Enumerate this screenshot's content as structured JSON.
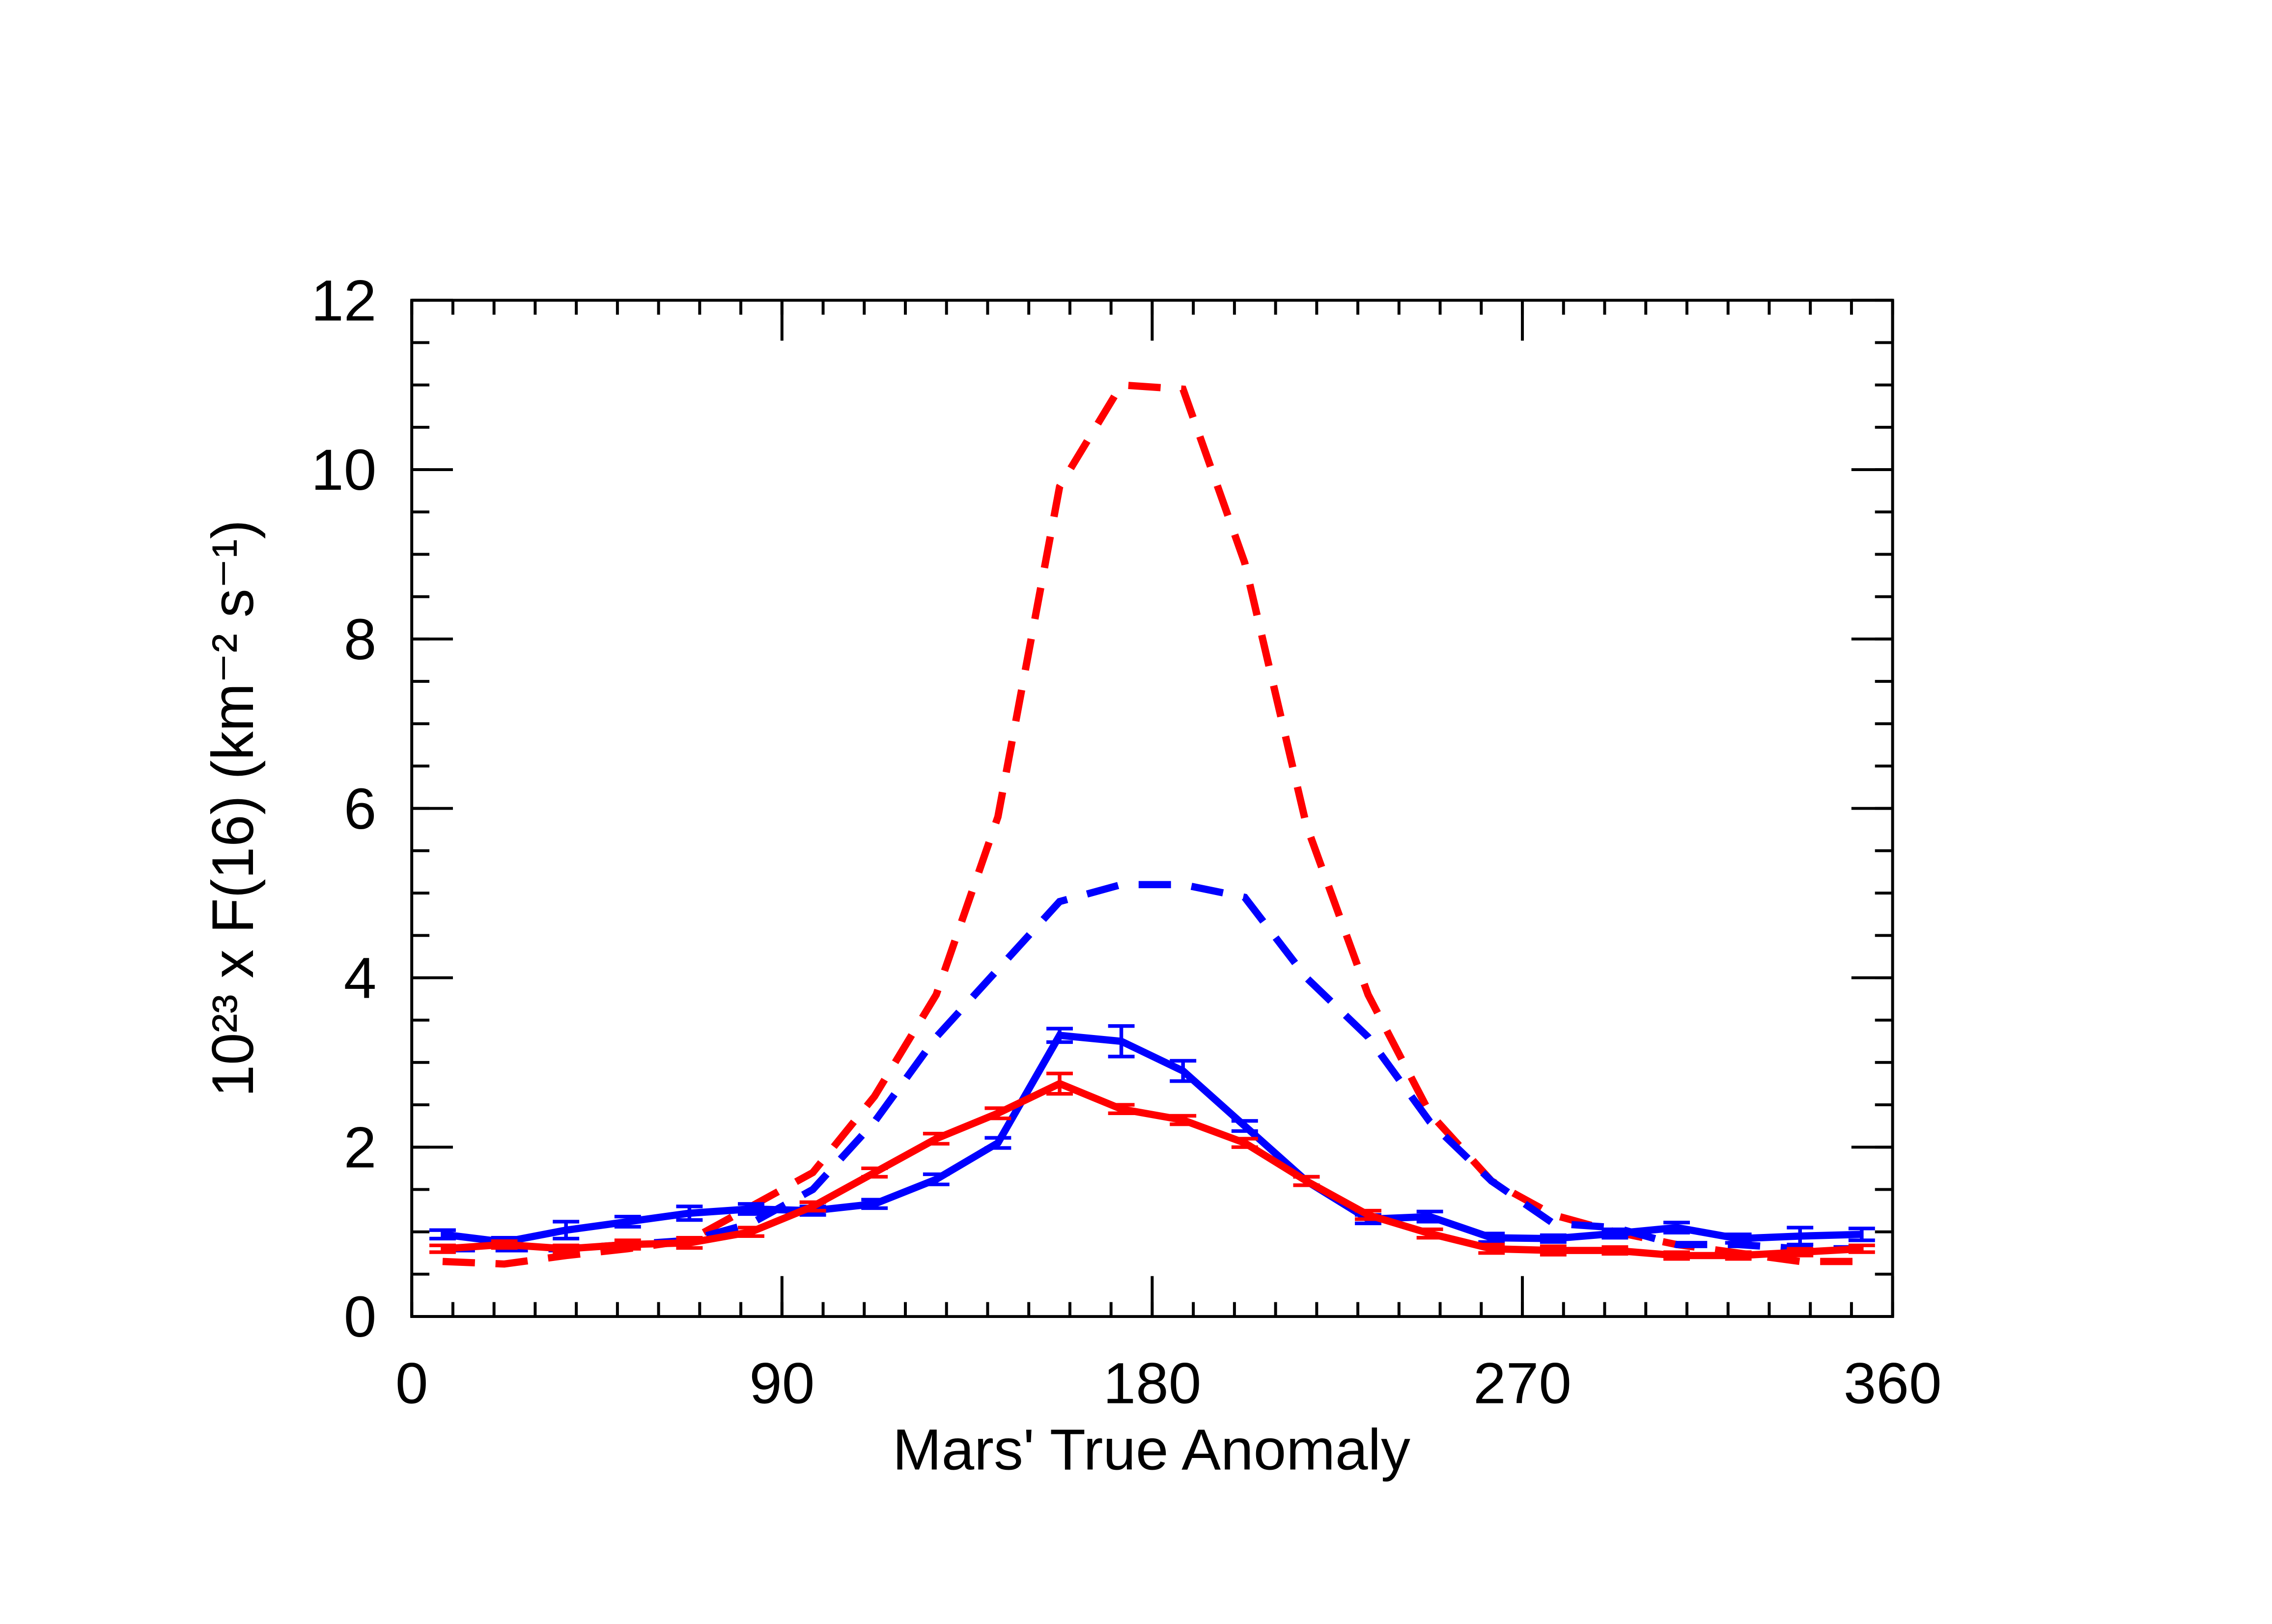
{
  "chart_data": {
    "type": "line",
    "xlabel": "Mars' True Anomaly",
    "ylabel": "10²³ x F(16) (km⁻² s⁻¹)",
    "x": [
      7.5,
      22.5,
      37.5,
      52.5,
      67.5,
      82.5,
      97.5,
      112.5,
      127.5,
      142.5,
      157.5,
      172.5,
      187.5,
      202.5,
      217.5,
      232.5,
      247.5,
      262.5,
      277.5,
      292.5,
      307.5,
      322.5,
      337.5,
      352.5
    ],
    "series": [
      {
        "color": "#ff0000",
        "dashed": true,
        "values": [
          0.65,
          0.62,
          0.72,
          0.8,
          0.9,
          1.3,
          1.7,
          2.6,
          3.8,
          5.9,
          9.8,
          11.0,
          10.95,
          8.9,
          5.8,
          3.8,
          2.4,
          1.6,
          1.2,
          1.0,
          0.85,
          0.75,
          0.65,
          0.65
        ]
      },
      {
        "color": "#0000ff",
        "dashed": true,
        "values": [
          0.8,
          0.8,
          0.8,
          0.85,
          0.9,
          1.1,
          1.5,
          2.3,
          3.3,
          4.1,
          4.9,
          5.1,
          5.1,
          4.95,
          4.0,
          3.3,
          2.3,
          1.6,
          1.1,
          1.05,
          0.85,
          0.85,
          0.8,
          0.8
        ]
      },
      {
        "color": "#0000ff",
        "dashed": false,
        "values": [
          0.97,
          0.88,
          1.02,
          1.12,
          1.22,
          1.27,
          1.25,
          1.33,
          1.62,
          2.05,
          3.32,
          3.25,
          2.9,
          2.25,
          1.6,
          1.15,
          1.18,
          0.93,
          0.92,
          0.98,
          1.05,
          0.92,
          0.95,
          0.97
        ],
        "errors": [
          0.05,
          0.05,
          0.1,
          0.06,
          0.08,
          0.06,
          0.05,
          0.05,
          0.06,
          0.06,
          0.08,
          0.18,
          0.12,
          0.06,
          0.05,
          0.05,
          0.06,
          0.05,
          0.04,
          0.05,
          0.06,
          0.05,
          0.1,
          0.07
        ]
      },
      {
        "color": "#ff0000",
        "dashed": false,
        "values": [
          0.8,
          0.85,
          0.8,
          0.85,
          0.87,
          1.0,
          1.3,
          1.7,
          2.1,
          2.4,
          2.75,
          2.45,
          2.32,
          2.05,
          1.6,
          1.2,
          0.98,
          0.8,
          0.78,
          0.78,
          0.72,
          0.72,
          0.76,
          0.8
        ],
        "errors": [
          0.04,
          0.04,
          0.04,
          0.05,
          0.06,
          0.05,
          0.05,
          0.05,
          0.06,
          0.06,
          0.12,
          0.05,
          0.05,
          0.05,
          0.05,
          0.05,
          0.05,
          0.05,
          0.05,
          0.04,
          0.04,
          0.04,
          0.04,
          0.04
        ]
      }
    ],
    "xlim": [
      0,
      360
    ],
    "xticks": [
      0,
      90,
      180,
      270,
      360
    ],
    "xminor": 10,
    "ylim": [
      0,
      12
    ],
    "yticks": [
      0,
      2,
      4,
      6,
      8,
      10,
      12
    ],
    "yminor": 0.5
  }
}
